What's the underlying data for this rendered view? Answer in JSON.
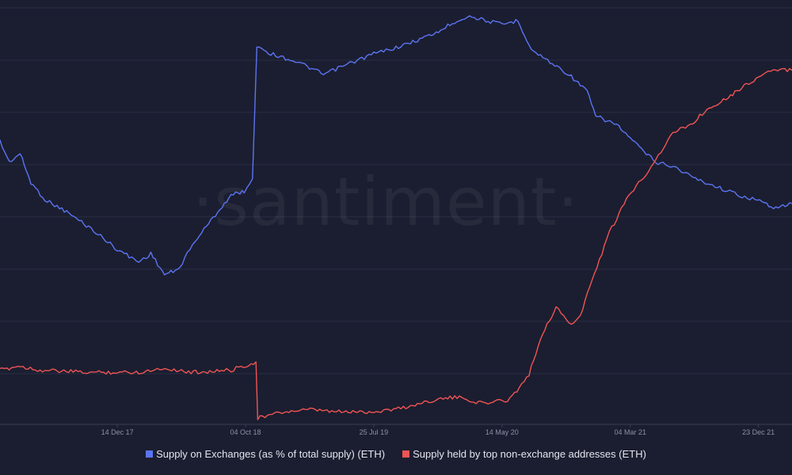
{
  "chart_data": {
    "type": "line",
    "title": "",
    "xlabel": "",
    "ylabel": "",
    "watermark": "·santiment·",
    "x_tick_labels": [
      "14 Dec 17",
      "04 Oct 18",
      "25 Jul 19",
      "14 May 20",
      "04 Mar 21",
      "23 Dec 21"
    ],
    "x_range": [
      "2017-03-20",
      "2022-03-10"
    ],
    "grid": "horizontal",
    "legend_position": "bottom",
    "background": "#1b1e30",
    "series": [
      {
        "name": "Supply on Exchanges (as % of total supply) (ETH)",
        "color": "#5b74f3",
        "axis": "left",
        "ylim": [
          0,
          100
        ],
        "points": [
          [
            "2017-03-20",
            68
          ],
          [
            "2017-04-10",
            63
          ],
          [
            "2017-05-05",
            65
          ],
          [
            "2017-05-30",
            58
          ],
          [
            "2017-07-01",
            54
          ],
          [
            "2017-08-20",
            51
          ],
          [
            "2017-10-15",
            47
          ],
          [
            "2017-12-14",
            42
          ],
          [
            "2018-02-01",
            39
          ],
          [
            "2018-03-01",
            41
          ],
          [
            "2018-04-01",
            36
          ],
          [
            "2018-05-01",
            37
          ],
          [
            "2018-06-10",
            44
          ],
          [
            "2018-08-01",
            51
          ],
          [
            "2018-09-01",
            55
          ],
          [
            "2018-10-01",
            56
          ],
          [
            "2018-10-20",
            59
          ],
          [
            "2018-10-30",
            91
          ],
          [
            "2018-12-01",
            89
          ],
          [
            "2019-02-01",
            87
          ],
          [
            "2019-04-01",
            84
          ],
          [
            "2019-05-15",
            86
          ],
          [
            "2019-07-25",
            89
          ],
          [
            "2019-10-01",
            91
          ],
          [
            "2019-12-15",
            94
          ],
          [
            "2020-02-01",
            97
          ],
          [
            "2020-03-01",
            98
          ],
          [
            "2020-05-14",
            96
          ],
          [
            "2020-06-20",
            97
          ],
          [
            "2020-07-20",
            90
          ],
          [
            "2020-09-01",
            87
          ],
          [
            "2020-10-15",
            84
          ],
          [
            "2020-11-25",
            80
          ],
          [
            "2020-12-15",
            74
          ],
          [
            "2021-02-01",
            72
          ],
          [
            "2021-03-20",
            67
          ],
          [
            "2021-05-01",
            63
          ],
          [
            "2021-06-10",
            62
          ],
          [
            "2021-08-01",
            59
          ],
          [
            "2021-09-20",
            57
          ],
          [
            "2021-11-10",
            55
          ],
          [
            "2021-12-15",
            54
          ],
          [
            "2022-02-01",
            52
          ],
          [
            "2022-03-10",
            53
          ]
        ]
      },
      {
        "name": "Supply held by top non-exchange addresses (ETH)",
        "color": "#f05454",
        "axis": "right",
        "ylim": [
          0,
          100
        ],
        "points": [
          [
            "2017-03-20",
            13
          ],
          [
            "2017-05-01",
            14
          ],
          [
            "2017-06-20",
            13
          ],
          [
            "2017-10-01",
            12.5
          ],
          [
            "2018-02-01",
            12.5
          ],
          [
            "2018-04-01",
            13.5
          ],
          [
            "2018-06-01",
            12.5
          ],
          [
            "2018-09-01",
            13
          ],
          [
            "2018-10-28",
            15
          ],
          [
            "2018-11-01",
            1.5
          ],
          [
            "2019-01-01",
            3
          ],
          [
            "2019-03-01",
            3.5
          ],
          [
            "2019-05-01",
            3
          ],
          [
            "2019-07-25",
            3
          ],
          [
            "2019-10-01",
            4
          ],
          [
            "2019-12-15",
            6
          ],
          [
            "2020-02-01",
            6.5
          ],
          [
            "2020-04-01",
            5
          ],
          [
            "2020-06-01",
            6
          ],
          [
            "2020-07-15",
            12
          ],
          [
            "2020-08-15",
            22
          ],
          [
            "2020-09-15",
            28
          ],
          [
            "2020-10-20",
            24
          ],
          [
            "2020-11-10",
            26
          ],
          [
            "2020-12-01",
            33
          ],
          [
            "2021-01-15",
            46
          ],
          [
            "2021-03-01",
            55
          ],
          [
            "2021-04-15",
            61
          ],
          [
            "2021-06-10",
            70
          ],
          [
            "2021-07-20",
            72
          ],
          [
            "2021-09-01",
            76
          ],
          [
            "2021-10-20",
            79
          ],
          [
            "2021-12-01",
            82
          ],
          [
            "2022-01-20",
            85
          ],
          [
            "2022-03-10",
            85
          ]
        ]
      }
    ]
  }
}
